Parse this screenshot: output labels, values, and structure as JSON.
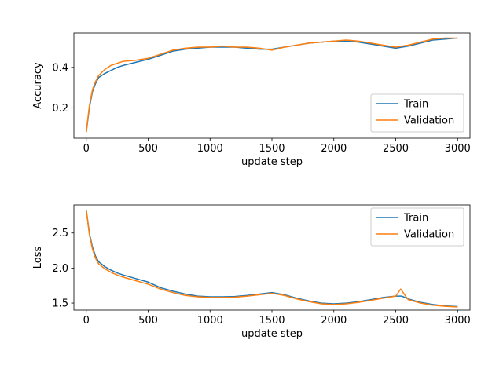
{
  "chart_data": [
    {
      "type": "line",
      "xlabel": "update step",
      "ylabel": "Accuracy",
      "xlim": [
        -100,
        3100
      ],
      "ylim": [
        0.05,
        0.57
      ],
      "xticks": [
        0,
        500,
        1000,
        1500,
        2000,
        2500,
        3000
      ],
      "yticks": [
        0.2,
        0.4
      ],
      "legend": "lower-right",
      "grid": false,
      "series": [
        {
          "name": "Train",
          "color": "#1f77b4",
          "x": [
            0,
            25,
            50,
            75,
            100,
            150,
            200,
            250,
            300,
            400,
            500,
            600,
            700,
            800,
            900,
            1000,
            1100,
            1200,
            1300,
            1400,
            1500,
            1600,
            1700,
            1800,
            1900,
            2000,
            2100,
            2200,
            2300,
            2400,
            2500,
            2600,
            2700,
            2800,
            2900,
            3000
          ],
          "y": [
            0.08,
            0.2,
            0.28,
            0.32,
            0.35,
            0.37,
            0.385,
            0.4,
            0.41,
            0.425,
            0.44,
            0.46,
            0.48,
            0.49,
            0.495,
            0.5,
            0.5,
            0.5,
            0.495,
            0.49,
            0.49,
            0.5,
            0.51,
            0.52,
            0.525,
            0.53,
            0.53,
            0.525,
            0.515,
            0.505,
            0.495,
            0.505,
            0.52,
            0.535,
            0.54,
            0.545
          ]
        },
        {
          "name": "Validation",
          "color": "#ff7f0e",
          "x": [
            0,
            25,
            50,
            75,
            100,
            150,
            200,
            250,
            300,
            400,
            500,
            600,
            700,
            800,
            900,
            1000,
            1100,
            1200,
            1300,
            1400,
            1500,
            1600,
            1700,
            1800,
            1900,
            2000,
            2100,
            2200,
            2300,
            2400,
            2500,
            2600,
            2700,
            2800,
            2900,
            3000
          ],
          "y": [
            0.08,
            0.21,
            0.29,
            0.33,
            0.36,
            0.39,
            0.41,
            0.42,
            0.43,
            0.435,
            0.445,
            0.465,
            0.485,
            0.495,
            0.5,
            0.5,
            0.505,
            0.5,
            0.5,
            0.495,
            0.485,
            0.5,
            0.51,
            0.52,
            0.525,
            0.53,
            0.535,
            0.53,
            0.52,
            0.51,
            0.5,
            0.51,
            0.525,
            0.54,
            0.545,
            0.545
          ]
        }
      ]
    },
    {
      "type": "line",
      "xlabel": "update step",
      "ylabel": "Loss",
      "xlim": [
        -100,
        3100
      ],
      "ylim": [
        1.4,
        2.9
      ],
      "xticks": [
        0,
        500,
        1000,
        1500,
        2000,
        2500,
        3000
      ],
      "yticks": [
        1.5,
        2.0,
        2.5
      ],
      "legend": "top-right",
      "grid": false,
      "series": [
        {
          "name": "Train",
          "color": "#1f77b4",
          "x": [
            0,
            25,
            50,
            75,
            100,
            150,
            200,
            250,
            300,
            400,
            500,
            600,
            700,
            800,
            900,
            1000,
            1100,
            1200,
            1300,
            1400,
            1500,
            1600,
            1700,
            1800,
            1900,
            2000,
            2100,
            2200,
            2300,
            2400,
            2500,
            2550,
            2600,
            2700,
            2800,
            2900,
            3000
          ],
          "y": [
            2.83,
            2.5,
            2.3,
            2.17,
            2.09,
            2.02,
            1.97,
            1.93,
            1.9,
            1.85,
            1.8,
            1.72,
            1.67,
            1.63,
            1.6,
            1.59,
            1.59,
            1.595,
            1.61,
            1.63,
            1.65,
            1.62,
            1.57,
            1.53,
            1.5,
            1.49,
            1.5,
            1.52,
            1.55,
            1.58,
            1.6,
            1.6,
            1.56,
            1.51,
            1.48,
            1.46,
            1.45
          ]
        },
        {
          "name": "Validation",
          "color": "#ff7f0e",
          "x": [
            0,
            25,
            50,
            75,
            100,
            150,
            200,
            250,
            300,
            400,
            500,
            600,
            700,
            800,
            900,
            1000,
            1100,
            1200,
            1300,
            1400,
            1500,
            1600,
            1700,
            1800,
            1900,
            2000,
            2100,
            2200,
            2300,
            2400,
            2500,
            2540,
            2600,
            2700,
            2800,
            2900,
            3000
          ],
          "y": [
            2.83,
            2.48,
            2.27,
            2.14,
            2.06,
            1.99,
            1.94,
            1.9,
            1.87,
            1.82,
            1.77,
            1.7,
            1.65,
            1.61,
            1.59,
            1.58,
            1.58,
            1.585,
            1.6,
            1.62,
            1.64,
            1.61,
            1.56,
            1.52,
            1.49,
            1.48,
            1.49,
            1.51,
            1.54,
            1.57,
            1.6,
            1.7,
            1.55,
            1.5,
            1.47,
            1.455,
            1.445
          ]
        }
      ]
    }
  ]
}
